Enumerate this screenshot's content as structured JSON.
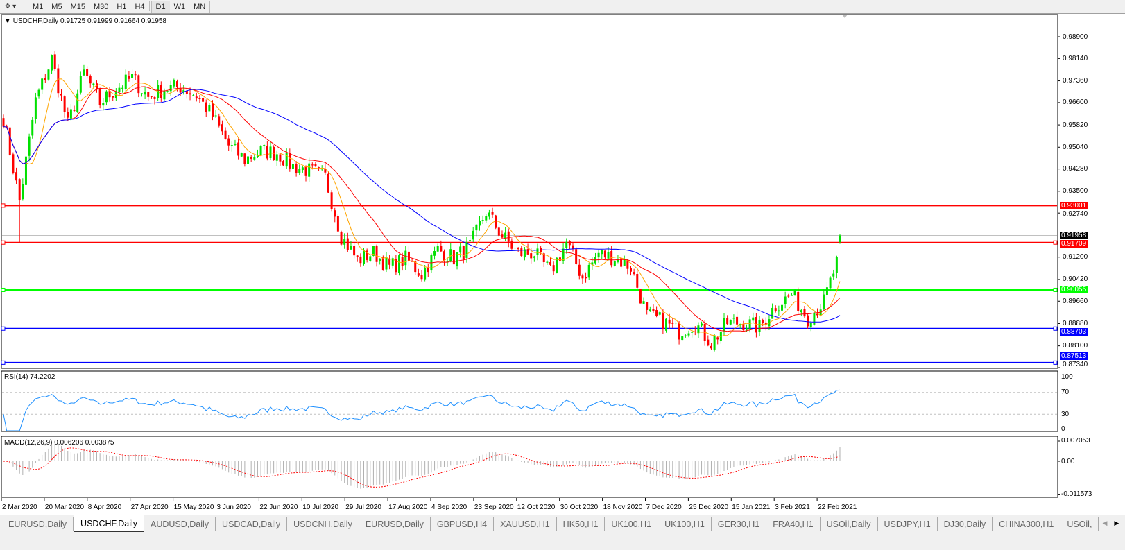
{
  "toolbar": {
    "timeframes": [
      "M1",
      "M5",
      "M15",
      "M30",
      "H1",
      "H4",
      "D1",
      "W1",
      "MN"
    ],
    "active_timeframe": "D1"
  },
  "chart": {
    "title": "USDCHF,Daily  0.91725 0.91999 0.91664 0.91958",
    "symbol": "USDCHF,Daily",
    "ohlc": {
      "open": 0.91725,
      "high": 0.91999,
      "low": 0.91664,
      "close": 0.91958
    },
    "price_ticks": [
      "0.98900",
      "0.98140",
      "0.97360",
      "0.96600",
      "0.95820",
      "0.95040",
      "0.94280",
      "0.93500",
      "0.92740",
      "0.91200",
      "0.90420",
      "0.89660",
      "0.88880",
      "0.88100",
      "0.87340"
    ],
    "current_price": "0.91958",
    "hlines": [
      {
        "price": "0.93001",
        "color": "#ff0000"
      },
      {
        "price": "0.91709",
        "color": "#ff0000"
      },
      {
        "price": "0.90055",
        "color": "#00ff00"
      },
      {
        "price": "0.88703",
        "color": "#0000ff"
      },
      {
        "price": "0.87513",
        "color": "#0000ff"
      }
    ],
    "colors": {
      "bull": "#00e000",
      "bear": "#ff0000",
      "ma_fast": "#ffa500",
      "ma_mid": "#ff0000",
      "ma_slow": "#0000ff"
    },
    "dates": [
      "2 Mar 2020",
      "20 Mar 2020",
      "8 Apr 2020",
      "27 Apr 2020",
      "15 May 2020",
      "3 Jun 2020",
      "22 Jun 2020",
      "10 Jul 2020",
      "29 Jul 2020",
      "17 Aug 2020",
      "4 Sep 2020",
      "23 Sep 2020",
      "12 Oct 2020",
      "30 Oct 2020",
      "18 Nov 2020",
      "7 Dec 2020",
      "25 Dec 2020",
      "15 Jan 2021",
      "3 Feb 2021",
      "22 Feb 2021"
    ]
  },
  "rsi": {
    "title": "RSI(14) 74.2202",
    "ticks": [
      "100",
      "70",
      "30",
      "0"
    ],
    "color": "#1e90ff"
  },
  "macd": {
    "title": "MACD(12,26,9) 0.006206 0.003875",
    "ticks": [
      "0.007053",
      "0.00",
      "-0.011573"
    ]
  },
  "chart_data": {
    "type": "candlestick",
    "weekly_closes": [
      0.9606,
      0.9316,
      0.9667,
      0.9812,
      0.9582,
      0.9764,
      0.966,
      0.9708,
      0.9747,
      0.9679,
      0.9708,
      0.9715,
      0.9684,
      0.9614,
      0.951,
      0.9461,
      0.949,
      0.9485,
      0.9437,
      0.9422,
      0.94,
      0.9194,
      0.911,
      0.9136,
      0.9085,
      0.9114,
      0.9061,
      0.9146,
      0.9117,
      0.9158,
      0.9279,
      0.9194,
      0.9134,
      0.9134,
      0.9068,
      0.917,
      0.9049,
      0.9134,
      0.9117,
      0.9085,
      0.8916,
      0.8896,
      0.886,
      0.8889,
      0.8819,
      0.8891,
      0.8891,
      0.8874,
      0.8952,
      0.8988,
      0.8908,
      0.8964,
      0.9134
    ],
    "ylim": [
      0.8734,
      0.989
    ]
  },
  "tabs": [
    "EURUSD,Daily",
    "USDCHF,Daily",
    "AUDUSD,Daily",
    "USDCAD,Daily",
    "USDCNH,Daily",
    "EURUSD,Daily",
    "GBPUSD,H4",
    "XAUUSD,H1",
    "HK50,H1",
    "UK100,H1",
    "UK100,H1",
    "GER30,H1",
    "FRA40,H1",
    "USOil,Daily",
    "USDJPY,H1",
    "DJ30,Daily",
    "CHINA300,H1",
    "USOil,"
  ],
  "active_tab": "USDCHF,Daily"
}
